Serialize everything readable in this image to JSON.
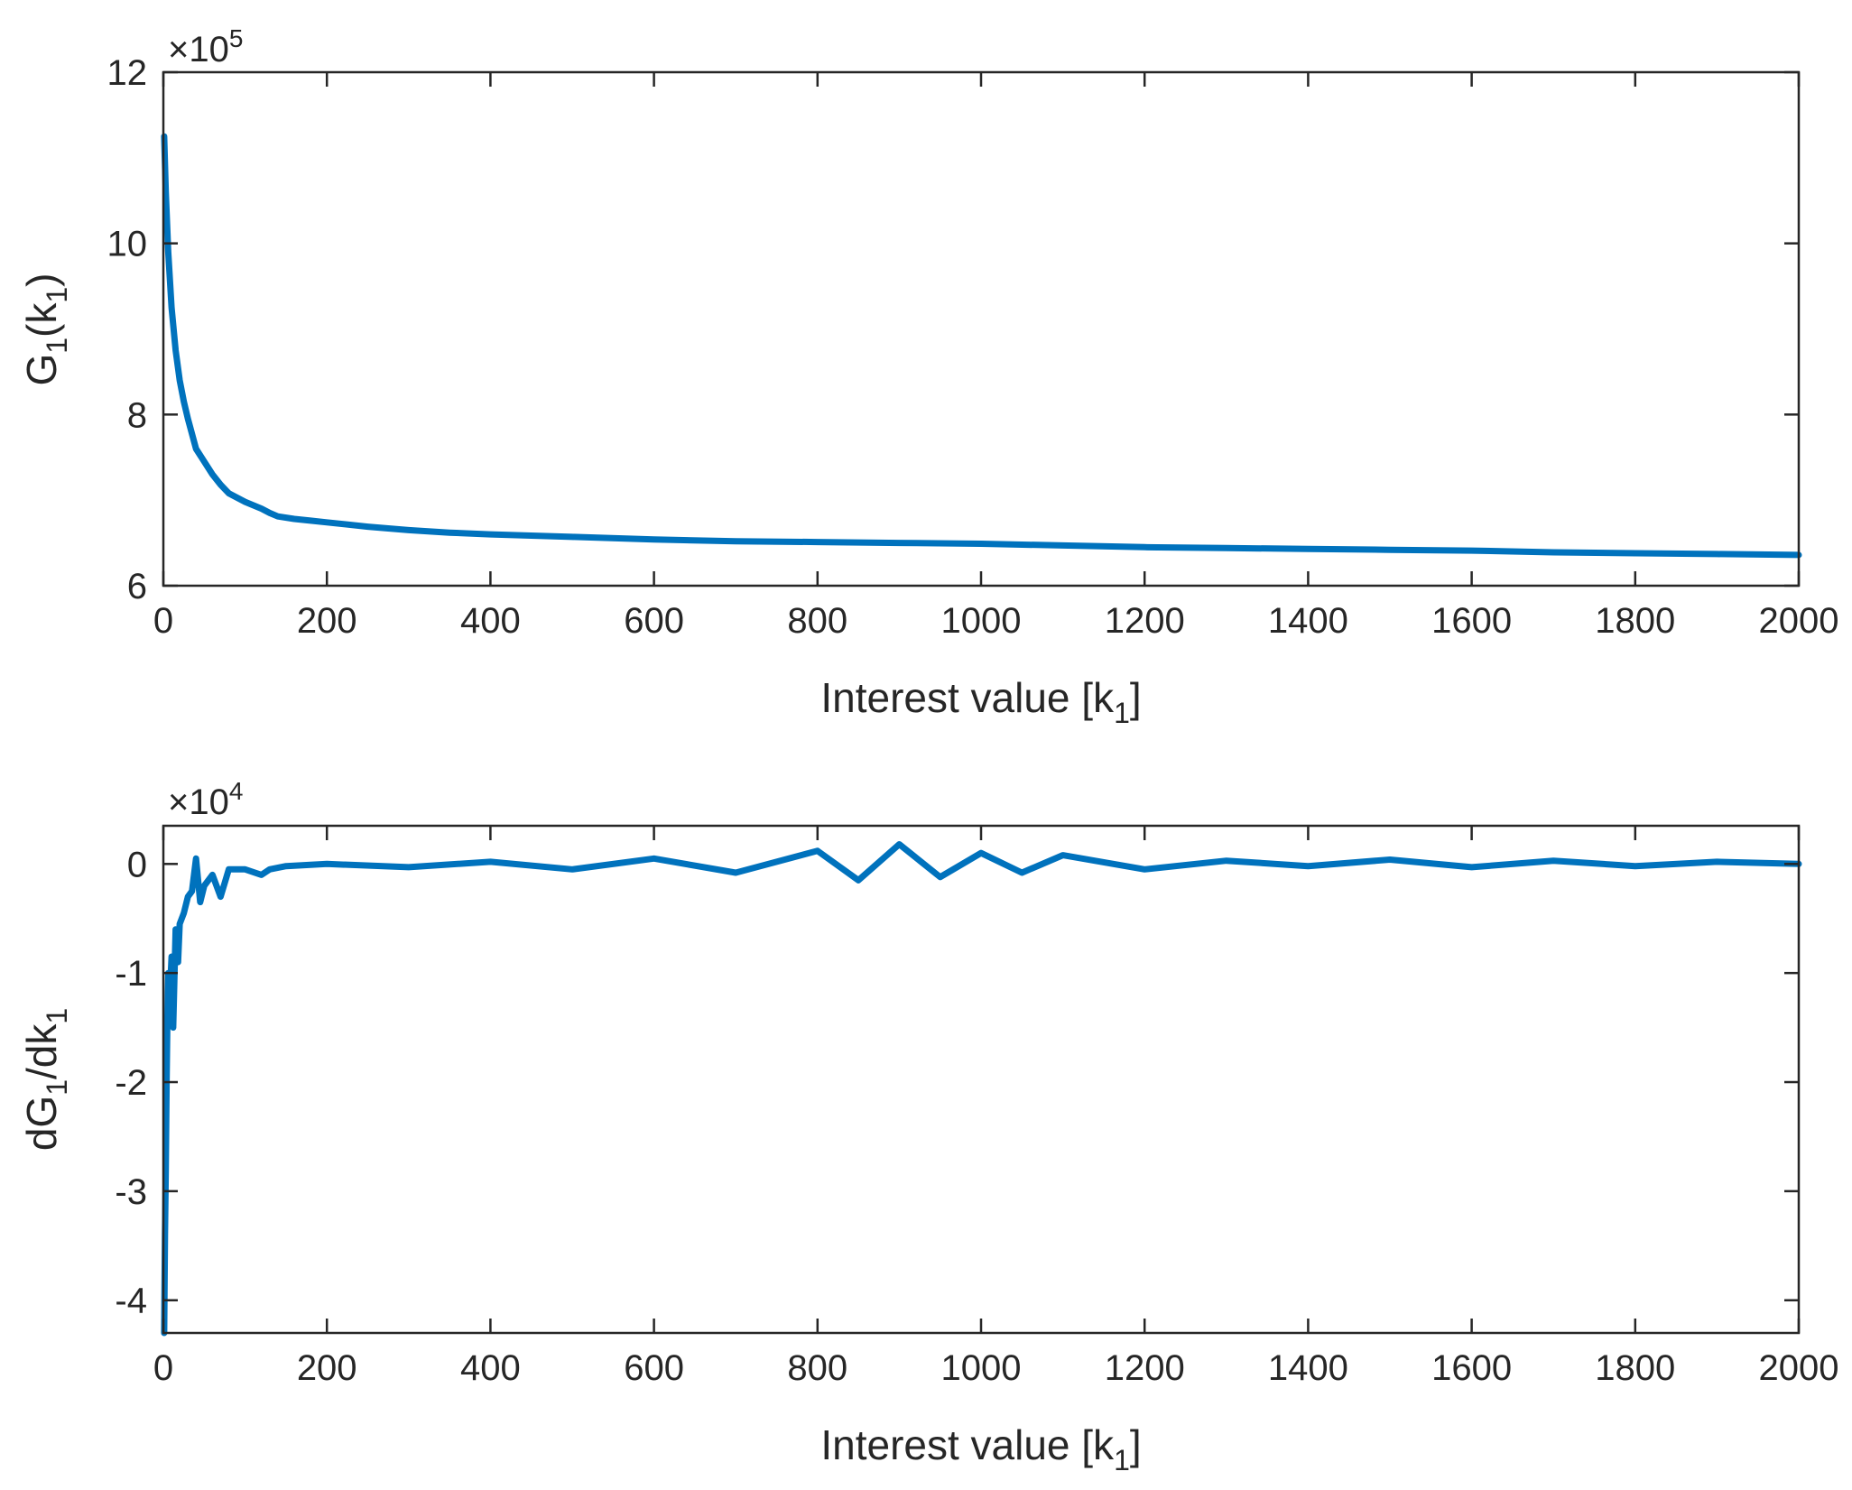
{
  "chart_data": [
    {
      "type": "line",
      "title": "",
      "xlabel": "Interest value [k1]",
      "ylabel": "G1(k1)",
      "xlabel_main": "Interest value [k",
      "xlabel_sub": "1",
      "xlabel_close": "]",
      "ylabel_parts": [
        "G",
        "1",
        "(k",
        "1",
        ")"
      ],
      "xlim": [
        0,
        2000
      ],
      "ylim": [
        6,
        12
      ],
      "x_ticks": [
        0,
        200,
        400,
        600,
        800,
        1000,
        1200,
        1400,
        1600,
        1800,
        2000
      ],
      "y_ticks": [
        6,
        8,
        10,
        12
      ],
      "y_multiplier": "×10",
      "y_multiplier_exp": "5",
      "series": [
        {
          "name": "G1(k1)",
          "color": "#0072bd",
          "x": [
            1,
            3,
            6,
            10,
            15,
            20,
            25,
            30,
            40,
            50,
            60,
            70,
            80,
            100,
            120,
            130,
            140,
            160,
            180,
            200,
            250,
            300,
            350,
            400,
            500,
            600,
            700,
            800,
            900,
            1000,
            1100,
            1200,
            1300,
            1400,
            1500,
            1600,
            1700,
            1800,
            1900,
            2000
          ],
          "y": [
            11.25,
            10.6,
            9.9,
            9.25,
            8.75,
            8.4,
            8.15,
            7.95,
            7.6,
            7.45,
            7.3,
            7.18,
            7.08,
            6.98,
            6.9,
            6.85,
            6.81,
            6.78,
            6.76,
            6.74,
            6.69,
            6.65,
            6.62,
            6.6,
            6.57,
            6.54,
            6.52,
            6.51,
            6.5,
            6.49,
            6.47,
            6.45,
            6.44,
            6.43,
            6.42,
            6.41,
            6.39,
            6.38,
            6.37,
            6.36
          ]
        }
      ]
    },
    {
      "type": "line",
      "title": "",
      "xlabel": "Interest value [k1]",
      "ylabel": "dG1/dk1",
      "xlabel_main": "Interest value [k",
      "xlabel_sub": "1",
      "xlabel_close": "]",
      "ylabel_parts": [
        "dG",
        "1",
        "/dk",
        "1",
        ""
      ],
      "xlim": [
        0,
        2000
      ],
      "ylim": [
        -4.3,
        0.35
      ],
      "x_ticks": [
        0,
        200,
        400,
        600,
        800,
        1000,
        1200,
        1400,
        1600,
        1800,
        2000
      ],
      "y_ticks": [
        -4,
        -3,
        -2,
        -1,
        0
      ],
      "y_multiplier": "×10",
      "y_multiplier_exp": "4",
      "series": [
        {
          "name": "dG1/dk1",
          "color": "#0072bd",
          "x": [
            1,
            2,
            3,
            4,
            5,
            6,
            8,
            10,
            12,
            15,
            18,
            20,
            25,
            30,
            35,
            40,
            45,
            50,
            60,
            70,
            80,
            100,
            120,
            130,
            150,
            200,
            300,
            400,
            500,
            600,
            700,
            800,
            850,
            900,
            950,
            1000,
            1050,
            1100,
            1200,
            1300,
            1400,
            1500,
            1600,
            1700,
            1800,
            1900,
            2000
          ],
          "y": [
            -4.3,
            -3.4,
            -2.8,
            -2.0,
            -1.4,
            -1.0,
            -1.2,
            -0.85,
            -1.5,
            -0.6,
            -0.9,
            -0.55,
            -0.45,
            -0.3,
            -0.25,
            0.05,
            -0.35,
            -0.2,
            -0.1,
            -0.3,
            -0.05,
            -0.05,
            -0.1,
            -0.05,
            -0.02,
            0.0,
            -0.03,
            0.02,
            -0.05,
            0.05,
            -0.08,
            0.12,
            -0.15,
            0.18,
            -0.12,
            0.1,
            -0.08,
            0.08,
            -0.05,
            0.03,
            -0.02,
            0.04,
            -0.03,
            0.03,
            -0.02,
            0.02,
            0.0
          ]
        }
      ]
    }
  ]
}
